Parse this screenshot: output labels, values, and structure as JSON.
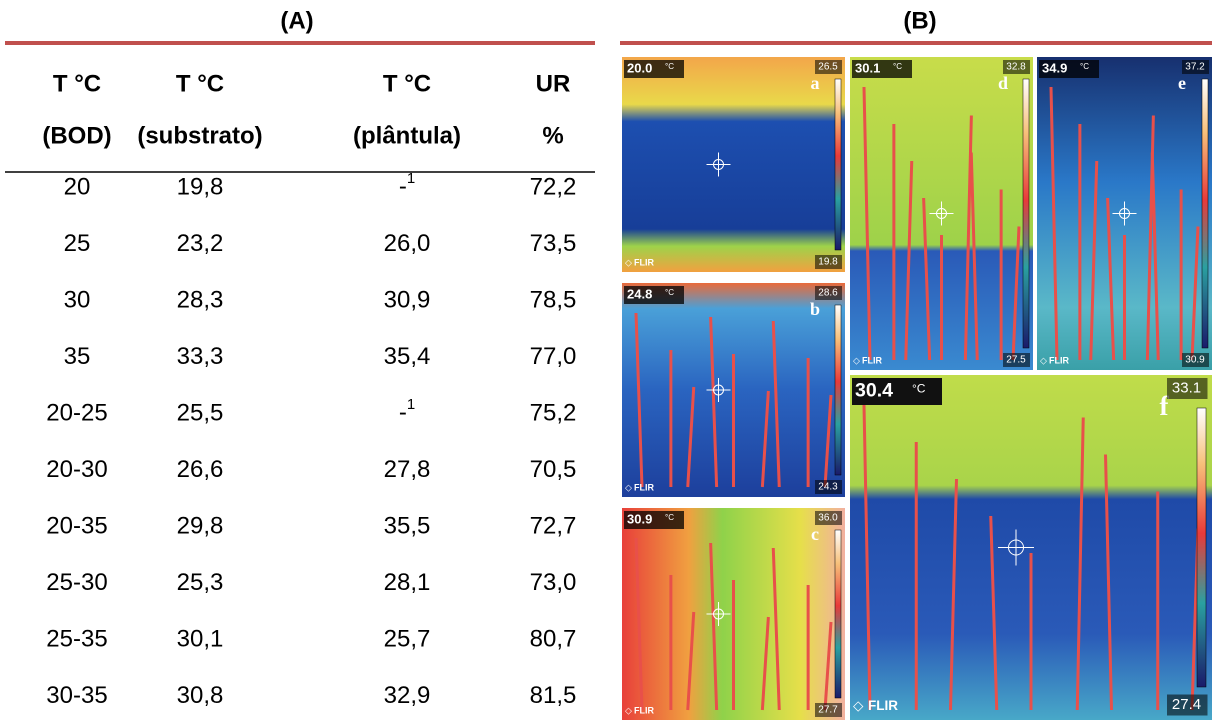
{
  "panel_a": {
    "label": "(A)",
    "header": [
      [
        "T °C",
        "(BOD)"
      ],
      [
        "T °C",
        "(substrato)"
      ],
      [
        "T °C",
        "(plântula)"
      ],
      [
        "UR",
        "%"
      ]
    ],
    "rows": [
      [
        "20",
        "19,8",
        {
          "text": "-",
          "sup": "1"
        },
        "72,2"
      ],
      [
        "25",
        "23,2",
        "26,0",
        "73,5"
      ],
      [
        "30",
        "28,3",
        "30,9",
        "78,5"
      ],
      [
        "35",
        "33,3",
        "35,4",
        "77,0"
      ],
      [
        "20-25",
        "25,5",
        {
          "text": "-",
          "sup": "1"
        },
        "75,2"
      ],
      [
        "20-30",
        "26,6",
        "27,8",
        "70,5"
      ],
      [
        "20-35",
        "29,8",
        "35,5",
        "72,7"
      ],
      [
        "25-30",
        "25,3",
        "28,1",
        "73,0"
      ],
      [
        "25-35",
        "30,1",
        "25,7",
        "80,7"
      ],
      [
        "30-35",
        "30,8",
        "32,9",
        "81,5"
      ]
    ]
  },
  "panel_b": {
    "label": "(B)",
    "images": [
      {
        "letter": "a",
        "temp": "20.0",
        "unit": "°C",
        "max": "26.5",
        "min": "19.8",
        "brand": "FLIR"
      },
      {
        "letter": "b",
        "temp": "24.8",
        "unit": "°C",
        "max": "28.6",
        "min": "24.3",
        "brand": "FLIR"
      },
      {
        "letter": "c",
        "temp": "30.9",
        "unit": "°C",
        "max": "36.0",
        "min": "27.7",
        "brand": "FLIR"
      },
      {
        "letter": "d",
        "temp": "30.1",
        "unit": "°C",
        "max": "32.8",
        "min": "27.5",
        "brand": "FLIR"
      },
      {
        "letter": "e",
        "temp": "34.9",
        "unit": "°C",
        "max": "37.2",
        "min": "30.9",
        "brand": "FLIR"
      },
      {
        "letter": "f",
        "temp": "30.4",
        "unit": "°C",
        "max": "33.1",
        "min": "27.4",
        "brand": "FLIR"
      }
    ]
  }
}
